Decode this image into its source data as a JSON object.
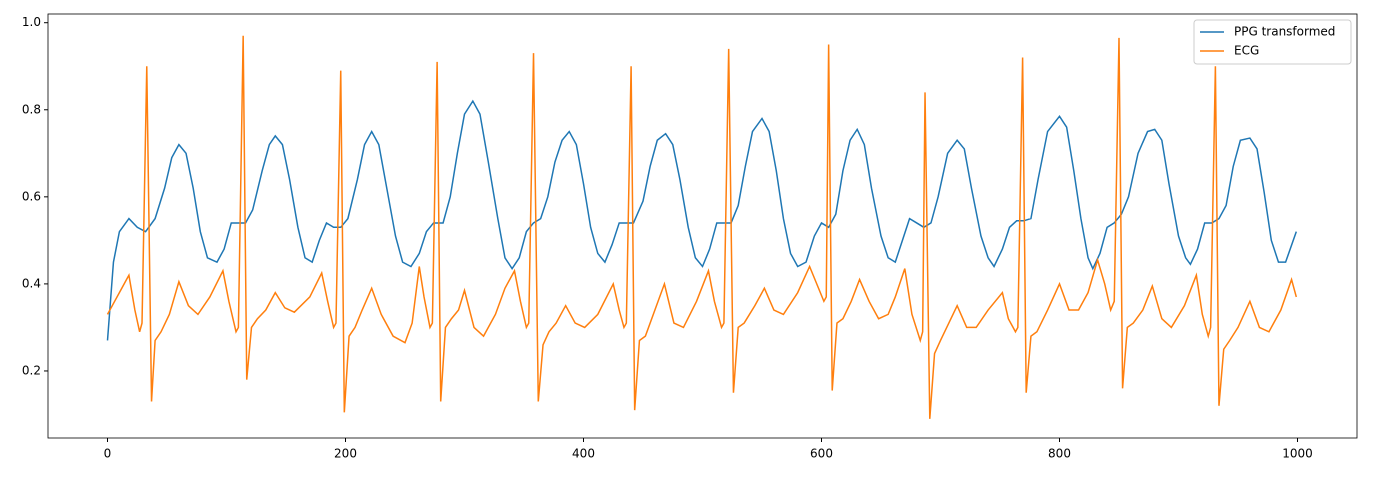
{
  "chart_data": {
    "type": "line",
    "xlim": [
      -50,
      1050
    ],
    "xticks": [
      0,
      200,
      400,
      600,
      800,
      1000
    ],
    "ylim": [
      0.046,
      1.02
    ],
    "yticks": [
      0.2,
      0.4,
      0.6,
      0.8,
      {
        "value": 1.0,
        "label": "1.0"
      }
    ],
    "legend": "upper right",
    "series": [
      {
        "name": "PPG transformed",
        "color": "#1f77b4",
        "x": [
          0,
          5,
          10,
          18,
          25,
          32,
          40,
          48,
          54,
          60,
          66,
          72,
          78,
          84,
          92,
          98,
          104,
          110,
          116,
          122,
          130,
          136,
          141,
          147,
          153,
          160,
          166,
          172,
          178,
          184,
          190,
          196,
          202,
          210,
          216,
          222,
          228,
          234,
          242,
          248,
          255,
          262,
          268,
          274,
          282,
          288,
          294,
          300,
          307,
          313,
          320,
          328,
          334,
          340,
          346,
          352,
          358,
          364,
          370,
          376,
          382,
          388,
          394,
          400,
          406,
          412,
          418,
          424,
          430,
          436,
          442,
          450,
          456,
          462,
          469,
          475,
          481,
          488,
          494,
          500,
          506,
          512,
          518,
          524,
          530,
          536,
          542,
          550,
          556,
          562,
          568,
          574,
          580,
          587,
          594,
          600,
          606,
          612,
          618,
          624,
          630,
          636,
          642,
          650,
          656,
          662,
          668,
          674,
          680,
          686,
          692,
          698,
          706,
          714,
          720,
          726,
          734,
          740,
          745,
          752,
          758,
          764,
          770,
          776,
          782,
          790,
          800,
          806,
          812,
          818,
          824,
          828,
          834,
          840,
          846,
          852,
          858,
          866,
          874,
          880,
          886,
          892,
          900,
          906,
          910,
          916,
          922,
          928,
          934,
          940,
          946,
          952,
          960,
          966,
          972,
          978,
          984,
          990,
          999
        ],
        "values": [
          0.27,
          0.45,
          0.52,
          0.55,
          0.53,
          0.52,
          0.55,
          0.62,
          0.69,
          0.72,
          0.7,
          0.62,
          0.52,
          0.46,
          0.45,
          0.48,
          0.54,
          0.54,
          0.54,
          0.57,
          0.66,
          0.72,
          0.74,
          0.72,
          0.64,
          0.53,
          0.46,
          0.45,
          0.5,
          0.54,
          0.53,
          0.53,
          0.55,
          0.64,
          0.72,
          0.75,
          0.72,
          0.63,
          0.51,
          0.45,
          0.44,
          0.47,
          0.52,
          0.54,
          0.54,
          0.6,
          0.7,
          0.79,
          0.82,
          0.79,
          0.68,
          0.55,
          0.46,
          0.435,
          0.46,
          0.52,
          0.54,
          0.55,
          0.6,
          0.68,
          0.73,
          0.75,
          0.72,
          0.63,
          0.53,
          0.47,
          0.45,
          0.49,
          0.54,
          0.54,
          0.54,
          0.59,
          0.67,
          0.73,
          0.745,
          0.72,
          0.64,
          0.53,
          0.46,
          0.44,
          0.48,
          0.54,
          0.54,
          0.54,
          0.58,
          0.67,
          0.75,
          0.78,
          0.75,
          0.66,
          0.55,
          0.47,
          0.44,
          0.45,
          0.51,
          0.54,
          0.53,
          0.56,
          0.66,
          0.73,
          0.755,
          0.72,
          0.62,
          0.51,
          0.46,
          0.45,
          0.5,
          0.55,
          0.54,
          0.53,
          0.54,
          0.6,
          0.7,
          0.73,
          0.71,
          0.62,
          0.51,
          0.46,
          0.44,
          0.48,
          0.53,
          0.545,
          0.545,
          0.55,
          0.64,
          0.75,
          0.785,
          0.76,
          0.66,
          0.55,
          0.46,
          0.435,
          0.47,
          0.53,
          0.54,
          0.56,
          0.6,
          0.7,
          0.75,
          0.755,
          0.73,
          0.63,
          0.51,
          0.46,
          0.445,
          0.48,
          0.54,
          0.54,
          0.55,
          0.58,
          0.67,
          0.73,
          0.735,
          0.71,
          0.61,
          0.5,
          0.45,
          0.45,
          0.52
        ]
      },
      {
        "name": "ECG",
        "color": "#ff7f0e",
        "x": [
          0,
          6,
          12,
          18,
          23,
          27,
          29,
          33,
          37,
          40,
          45,
          52,
          60,
          68,
          76,
          86,
          97,
          102,
          108,
          110,
          114,
          117,
          121,
          126,
          133,
          141,
          149,
          157,
          170,
          180,
          185,
          190,
          192,
          196,
          199,
          203,
          208,
          214,
          222,
          230,
          240,
          250,
          256,
          262,
          266,
          271,
          273,
          277,
          280,
          284,
          289,
          295,
          300,
          308,
          316,
          326,
          334,
          342,
          347,
          352,
          354,
          358,
          362,
          366,
          371,
          377,
          385,
          393,
          401,
          412,
          425,
          430,
          434,
          436,
          440,
          443,
          447,
          452,
          460,
          468,
          476,
          484,
          495,
          505,
          510,
          516,
          518,
          522,
          526,
          530,
          535,
          544,
          552,
          560,
          568,
          580,
          590,
          596,
          602,
          604,
          606,
          609,
          613,
          618,
          625,
          632,
          640,
          648,
          656,
          662,
          670,
          676,
          683,
          685,
          687,
          691,
          695,
          700,
          707,
          714,
          722,
          730,
          740,
          752,
          757,
          763,
          765,
          769,
          772,
          776,
          781,
          790,
          800,
          808,
          816,
          824,
          832,
          838,
          843,
          846,
          850,
          853,
          857,
          862,
          870,
          878,
          886,
          894,
          905,
          915,
          920,
          925,
          927,
          931,
          934,
          938,
          943,
          950,
          960,
          968,
          976,
          986,
          995,
          999
        ],
        "values": [
          0.33,
          0.36,
          0.39,
          0.42,
          0.34,
          0.29,
          0.31,
          0.9,
          0.13,
          0.27,
          0.29,
          0.33,
          0.405,
          0.35,
          0.33,
          0.37,
          0.43,
          0.36,
          0.29,
          0.3,
          0.97,
          0.18,
          0.3,
          0.32,
          0.34,
          0.38,
          0.345,
          0.335,
          0.37,
          0.425,
          0.36,
          0.3,
          0.31,
          0.89,
          0.105,
          0.28,
          0.3,
          0.34,
          0.39,
          0.33,
          0.28,
          0.265,
          0.31,
          0.44,
          0.37,
          0.3,
          0.31,
          0.91,
          0.13,
          0.3,
          0.32,
          0.34,
          0.385,
          0.3,
          0.28,
          0.33,
          0.39,
          0.43,
          0.36,
          0.3,
          0.31,
          0.93,
          0.13,
          0.26,
          0.29,
          0.31,
          0.35,
          0.31,
          0.3,
          0.33,
          0.4,
          0.34,
          0.3,
          0.31,
          0.9,
          0.11,
          0.27,
          0.28,
          0.34,
          0.4,
          0.31,
          0.3,
          0.36,
          0.43,
          0.36,
          0.3,
          0.31,
          0.94,
          0.15,
          0.3,
          0.31,
          0.35,
          0.39,
          0.34,
          0.33,
          0.38,
          0.44,
          0.4,
          0.36,
          0.37,
          0.95,
          0.155,
          0.31,
          0.32,
          0.36,
          0.41,
          0.36,
          0.32,
          0.33,
          0.37,
          0.435,
          0.33,
          0.27,
          0.29,
          0.84,
          0.09,
          0.24,
          0.27,
          0.31,
          0.35,
          0.3,
          0.3,
          0.34,
          0.38,
          0.32,
          0.29,
          0.3,
          0.92,
          0.15,
          0.28,
          0.29,
          0.34,
          0.4,
          0.34,
          0.34,
          0.38,
          0.455,
          0.4,
          0.34,
          0.36,
          0.965,
          0.16,
          0.3,
          0.31,
          0.34,
          0.395,
          0.32,
          0.3,
          0.35,
          0.42,
          0.33,
          0.28,
          0.3,
          0.9,
          0.12,
          0.25,
          0.27,
          0.3,
          0.36,
          0.3,
          0.29,
          0.34,
          0.41,
          0.37
        ]
      }
    ]
  }
}
